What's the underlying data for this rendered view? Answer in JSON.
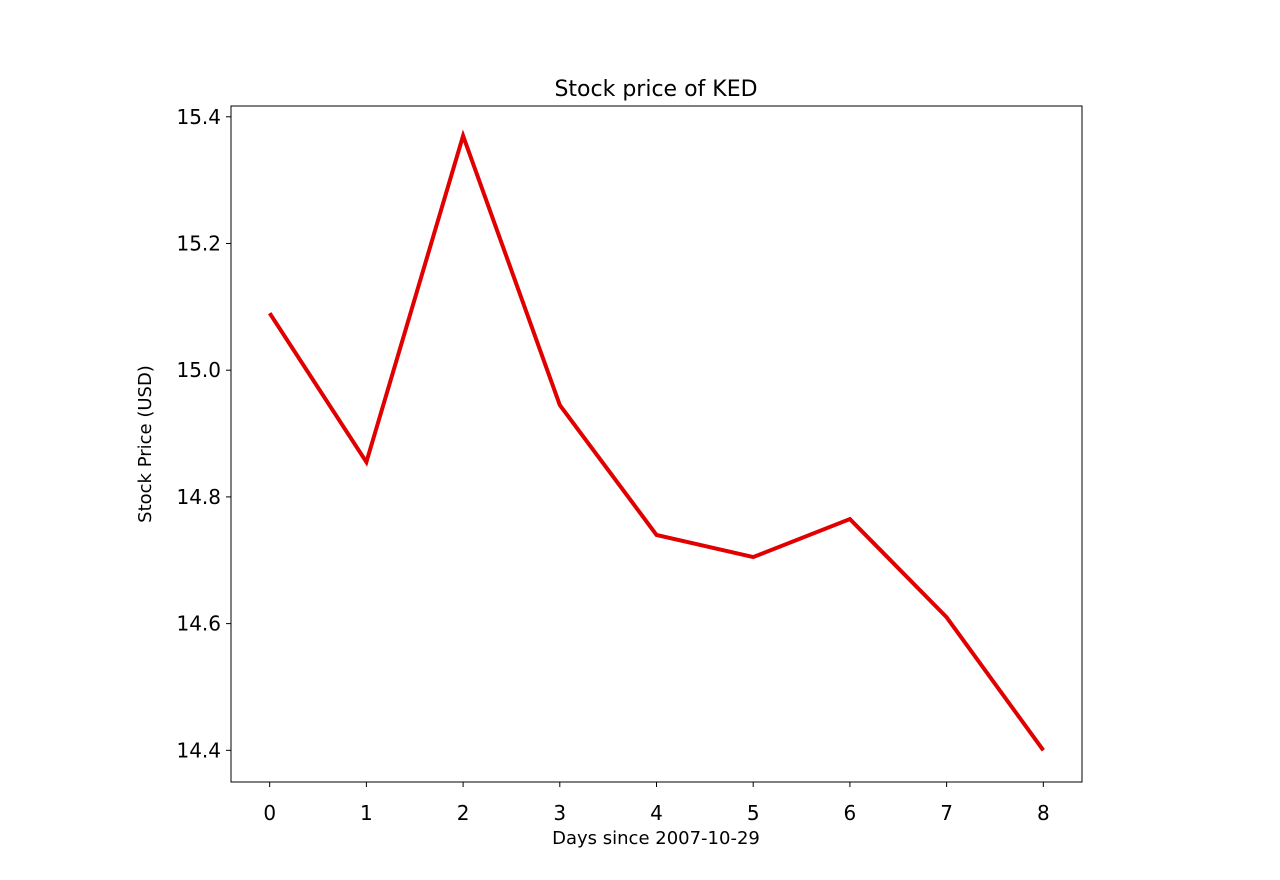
{
  "chart_data": {
    "type": "line",
    "title": "Stock price of KED",
    "xlabel": "Days since 2007-10-29",
    "ylabel": "Stock Price (USD)",
    "x": [
      0,
      1,
      2,
      3,
      4,
      5,
      6,
      7,
      8
    ],
    "xticks": [
      "0",
      "1",
      "2",
      "3",
      "4",
      "5",
      "6",
      "7",
      "8"
    ],
    "yticks": [
      "14.4",
      "14.6",
      "14.8",
      "15.0",
      "15.2",
      "15.4"
    ],
    "xlim": [
      -0.4,
      8.4
    ],
    "ylim": [
      14.35,
      15.417
    ],
    "series": [
      {
        "color": "#e00000",
        "values": [
          15.09,
          14.855,
          15.37,
          14.945,
          14.74,
          14.705,
          14.765,
          14.61,
          14.4
        ]
      }
    ],
    "grid": false,
    "legend": "none"
  }
}
